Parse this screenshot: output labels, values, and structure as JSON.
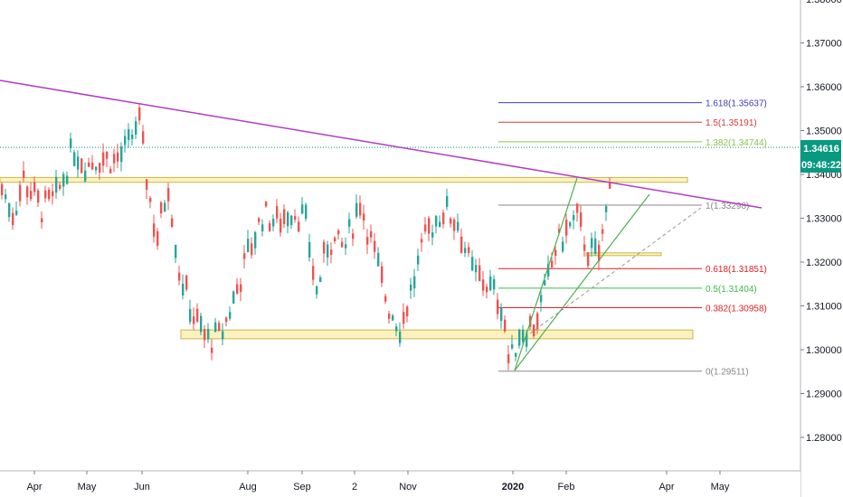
{
  "chart_data": {
    "type": "candlestick",
    "y_axis": {
      "range": [
        1.2705,
        1.3813
      ],
      "ticks": [
        "1.38000",
        "1.37000",
        "1.36000",
        "1.35000",
        "1.34000",
        "1.33000",
        "1.32000",
        "1.31000",
        "1.30000",
        "1.29000",
        "1.28000"
      ]
    },
    "x_axis": {
      "ticks": [
        "Apr",
        "May",
        "Jun",
        "Aug",
        "Sep",
        "2",
        "Nov",
        "2020",
        "Feb",
        "Apr",
        "May"
      ],
      "bold_ticks": [
        "2020"
      ]
    },
    "current_price": {
      "label": "1.34616",
      "value": 1.34616,
      "color": "#089981"
    },
    "countdown": {
      "label": "09:48:22"
    },
    "fib_levels": [
      {
        "ratio": "1.618",
        "value": 1.35637,
        "label": "1.618(1.35637)",
        "color": "#3f3fb0"
      },
      {
        "ratio": "1.5",
        "value": 1.35191,
        "label": "1.5(1.35191)",
        "color": "#d23c3c"
      },
      {
        "ratio": "1.382",
        "value": 1.34744,
        "label": "1.382(1.34744)",
        "color": "#8cc44a"
      },
      {
        "ratio": "1",
        "value": 1.33298,
        "label": "1(1.33298)",
        "color": "#888888"
      },
      {
        "ratio": "0.618",
        "value": 1.31851,
        "label": "0.618(1.31851)",
        "color": "#e02020"
      },
      {
        "ratio": "0.5",
        "value": 1.31404,
        "label": "0.5(1.31404)",
        "color": "#3cba4a"
      },
      {
        "ratio": "0.382",
        "value": 1.30958,
        "label": "0.382(1.30958)",
        "color": "#e02020"
      },
      {
        "ratio": "0",
        "value": 1.29511,
        "label": "0(1.29511)",
        "color": "#888888"
      }
    ],
    "zones": [
      {
        "name": "resistance-zone",
        "from": 1.3382,
        "to": 1.3393
      },
      {
        "name": "support-zone",
        "from": 1.3025,
        "to": 1.3045
      },
      {
        "name": "small-zone",
        "from": 1.3215,
        "to": 1.3221
      }
    ],
    "trendlines": [
      {
        "name": "descending-trendline",
        "color": "#b23cc4"
      },
      {
        "name": "channel-upper",
        "color": "#4caf50"
      },
      {
        "name": "channel-lower",
        "color": "#4caf50"
      },
      {
        "name": "projection",
        "color": "#999999"
      }
    ],
    "candle_colors": {
      "up": "#26a69a",
      "down": "#ef5350"
    },
    "grid": false
  }
}
